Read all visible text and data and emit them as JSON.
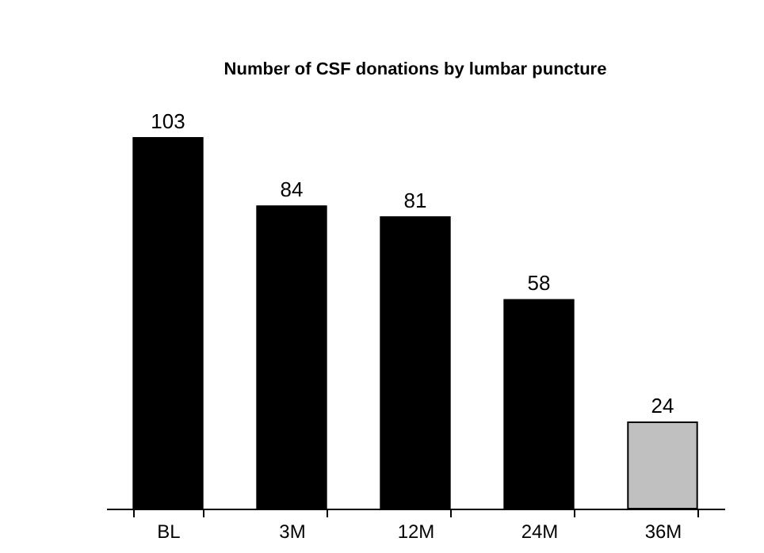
{
  "chart_data": {
    "type": "bar",
    "title": "Number of CSF donations by lumbar puncture",
    "categories": [
      "BL",
      "3M",
      "12M",
      "24M",
      "36M"
    ],
    "values": [
      103,
      84,
      81,
      58,
      24
    ],
    "colors": [
      "#000000",
      "#000000",
      "#000000",
      "#000000",
      "#c0c0c0"
    ],
    "data_labels": true
  }
}
